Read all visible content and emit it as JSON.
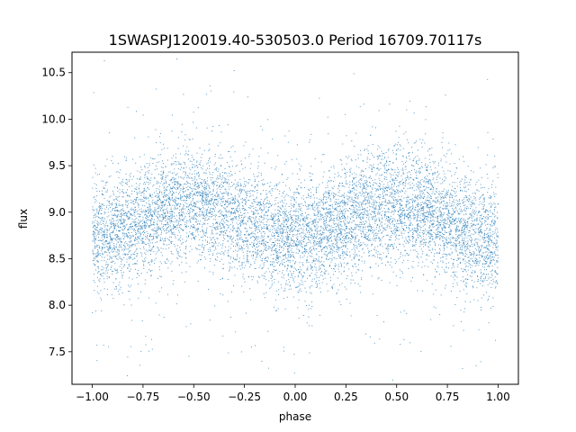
{
  "chart_data": {
    "type": "scatter",
    "title": "1SWASPJ120019.40-530503.0 Period 16709.70117s",
    "xlabel": "phase",
    "ylabel": "flux",
    "xlim": [
      -1.1,
      1.1
    ],
    "ylim": [
      7.15,
      10.72
    ],
    "xticks": [
      -1.0,
      -0.75,
      -0.5,
      -0.25,
      0.0,
      0.25,
      0.5,
      0.75,
      1.0
    ],
    "xtick_labels": [
      "−1.00",
      "−0.75",
      "−0.50",
      "−0.25",
      "0.00",
      "0.25",
      "0.50",
      "0.75",
      "1.00"
    ],
    "yticks": [
      7.5,
      8.0,
      8.5,
      9.0,
      9.5,
      10.0,
      10.5
    ],
    "ytick_labels": [
      "7.5",
      "8.0",
      "8.5",
      "9.0",
      "9.5",
      "10.0",
      "10.5"
    ],
    "grid": false,
    "point_color": "#1f77b4",
    "phase_range": [
      -1.0,
      1.0
    ],
    "model": {
      "mean_flux": 8.9,
      "amplitude": 0.18,
      "maximum_phase": [
        -0.55,
        0.45
      ],
      "minimum_phase": [
        -1.0,
        0.0,
        1.0
      ],
      "scatter_sigma": 0.3
    }
  }
}
